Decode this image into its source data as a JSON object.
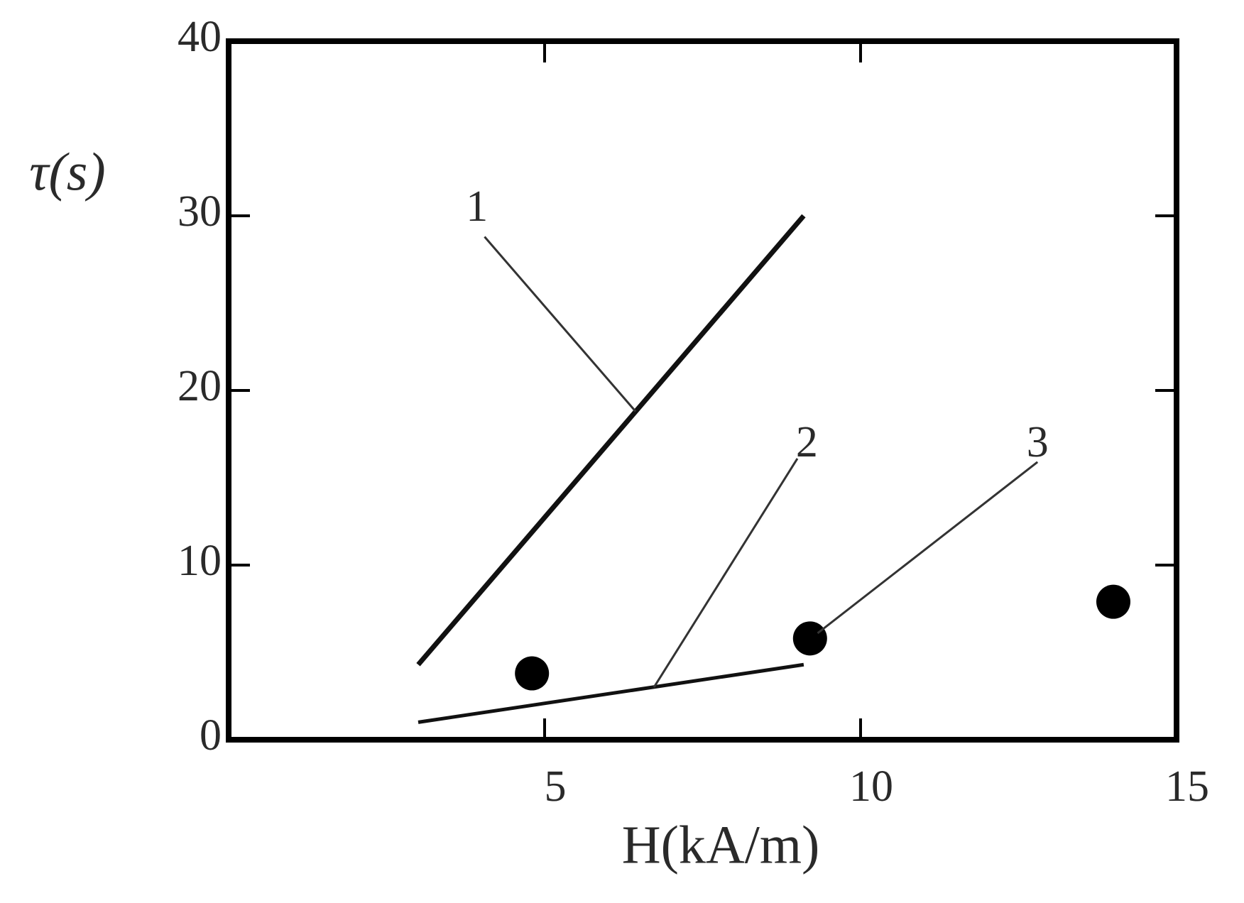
{
  "chart_data": {
    "type": "line",
    "x_label": "H(kA/m)",
    "y_label": "τ(s)",
    "xlim": [
      0,
      15
    ],
    "ylim": [
      0,
      40
    ],
    "xticks": [
      5,
      10,
      15
    ],
    "yticks": [
      0,
      10,
      20,
      30,
      40
    ],
    "series": [
      {
        "name": "1",
        "color": "#111111",
        "x": [
          3,
          9.1
        ],
        "values": [
          4.3,
          30
        ]
      },
      {
        "name": "2",
        "color": "#111111",
        "x": [
          3,
          9.1
        ],
        "values": [
          1,
          4.3
        ]
      },
      {
        "name": "3",
        "color": "#000000",
        "x": [
          4.8,
          9.2,
          14
        ],
        "values": [
          3.8,
          5.8,
          7.9
        ],
        "marker": "circle",
        "line": false
      }
    ]
  }
}
